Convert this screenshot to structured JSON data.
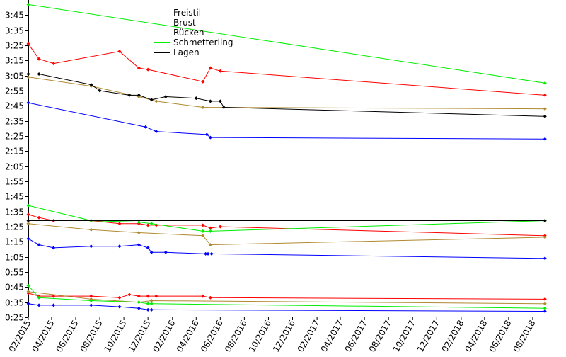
{
  "chart_data": {
    "type": "line",
    "x_type": "date",
    "xlim": [
      "2015-02-01",
      "2018-10-01"
    ],
    "ylim": [
      "0:25",
      "3:55"
    ],
    "x_ticks": [
      "02/2015",
      "04/2015",
      "06/2015",
      "08/2015",
      "10/2015",
      "12/2015",
      "02/2016",
      "04/2016",
      "06/2016",
      "08/2016",
      "10/2016",
      "12/2016",
      "02/2017",
      "04/2017",
      "06/2017",
      "08/2017",
      "10/2017",
      "12/2017",
      "02/2018",
      "04/2018",
      "06/2018",
      "08/2018"
    ],
    "y_ticks": [
      "0:25",
      "0:35",
      "0:45",
      "0:55",
      "1:05",
      "1:15",
      "1:25",
      "1:35",
      "1:45",
      "1:55",
      "2:05",
      "2:15",
      "2:25",
      "2:35",
      "2:45",
      "2:55",
      "3:05",
      "3:15",
      "3:25",
      "3:35",
      "3:45"
    ],
    "grid": false,
    "legend_position": "top-center",
    "series": [
      {
        "name": "Freistil",
        "color": "#0000ff",
        "groups": [
          [
            [
              "2015-02-01",
              "2:47"
            ],
            [
              "2015-11-25",
              "2:31"
            ],
            [
              "2015-12-22",
              "2:28"
            ],
            [
              "2016-04-28",
              "2:26"
            ],
            [
              "2016-05-07",
              "2:24"
            ],
            [
              "2018-09-01",
              "2:23"
            ]
          ],
          [
            [
              "2015-02-01",
              "1:17"
            ],
            [
              "2015-02-28",
              "1:13"
            ],
            [
              "2015-04-06",
              "1:11"
            ],
            [
              "2015-07-10",
              "1:12"
            ],
            [
              "2015-09-20",
              "1:12"
            ],
            [
              "2015-11-08",
              "1:13"
            ],
            [
              "2015-12-01",
              "1:11"
            ],
            [
              "2015-12-10",
              "1:08"
            ],
            [
              "2016-01-15",
              "1:08"
            ],
            [
              "2016-04-25",
              "1:07"
            ],
            [
              "2016-05-01",
              "1:07"
            ],
            [
              "2016-05-10",
              "1:07"
            ],
            [
              "2018-09-01",
              "1:04"
            ]
          ],
          [
            [
              "2015-02-01",
              "0:34"
            ],
            [
              "2015-02-28",
              "0:33"
            ],
            [
              "2015-04-06",
              "0:33"
            ],
            [
              "2015-07-10",
              "0:33"
            ],
            [
              "2015-09-20",
              "0:32"
            ],
            [
              "2015-11-08",
              "0:31"
            ],
            [
              "2015-12-01",
              "0:30"
            ],
            [
              "2015-12-10",
              "0:30"
            ],
            [
              "2018-09-01",
              "0:29"
            ]
          ]
        ]
      },
      {
        "name": "Brust",
        "color": "#ff0000",
        "groups": [
          [
            [
              "2015-02-01",
              "3:26"
            ],
            [
              "2015-02-28",
              "3:16"
            ],
            [
              "2015-04-06",
              "3:13"
            ],
            [
              "2015-09-20",
              "3:21"
            ],
            [
              "2015-11-08",
              "3:10"
            ],
            [
              "2015-12-01",
              "3:09"
            ],
            [
              "2016-04-18",
              "3:01"
            ],
            [
              "2016-05-07",
              "3:10"
            ],
            [
              "2016-06-01",
              "3:08"
            ],
            [
              "2018-09-01",
              "2:52"
            ]
          ],
          [
            [
              "2015-02-01",
              "1:33"
            ],
            [
              "2015-02-28",
              "1:31"
            ],
            [
              "2015-04-06",
              "1:29"
            ],
            [
              "2015-07-10",
              "1:29"
            ],
            [
              "2015-09-20",
              "1:27"
            ],
            [
              "2015-11-08",
              "1:27"
            ],
            [
              "2015-12-01",
              "1:26"
            ],
            [
              "2015-12-22",
              "1:26"
            ],
            [
              "2016-04-18",
              "1:26"
            ],
            [
              "2016-05-07",
              "1:24"
            ],
            [
              "2016-06-01",
              "1:25"
            ],
            [
              "2018-09-01",
              "1:19"
            ]
          ],
          [
            [
              "2015-02-01",
              "0:41"
            ],
            [
              "2015-02-28",
              "0:39"
            ],
            [
              "2015-04-06",
              "0:39"
            ],
            [
              "2015-07-10",
              "0:39"
            ],
            [
              "2015-09-20",
              "0:38"
            ],
            [
              "2015-10-15",
              "0:40"
            ],
            [
              "2015-11-08",
              "0:39"
            ],
            [
              "2015-12-01",
              "0:39"
            ],
            [
              "2015-12-22",
              "0:39"
            ],
            [
              "2016-04-18",
              "0:39"
            ],
            [
              "2016-05-07",
              "0:38"
            ],
            [
              "2018-09-01",
              "0:37"
            ]
          ]
        ]
      },
      {
        "name": "Rücken",
        "color": "#b08a30",
        "groups": [
          [
            [
              "2015-02-01",
              "3:04"
            ],
            [
              "2015-07-10",
              "2:58"
            ],
            [
              "2015-11-08",
              "2:51"
            ],
            [
              "2015-12-22",
              "2:48"
            ],
            [
              "2016-04-18",
              "2:44"
            ],
            [
              "2018-09-01",
              "2:43"
            ]
          ],
          [
            [
              "2015-02-01",
              "1:27"
            ],
            [
              "2015-07-10",
              "1:23"
            ],
            [
              "2015-11-08",
              "1:21"
            ],
            [
              "2016-04-18",
              "1:19"
            ],
            [
              "2016-05-07",
              "1:13"
            ],
            [
              "2018-09-01",
              "1:18"
            ]
          ],
          [
            [
              "2015-02-01",
              "0:42"
            ],
            [
              "2015-07-10",
              "0:37"
            ],
            [
              "2015-11-08",
              "0:35"
            ],
            [
              "2015-12-10",
              "0:36"
            ],
            [
              "2018-09-01",
              "0:34"
            ]
          ]
        ]
      },
      {
        "name": "Schmetterling",
        "color": "#00ee00",
        "groups": [
          [
            [
              "2015-02-01",
              "3:52"
            ],
            [
              "2018-09-01",
              "3:00"
            ]
          ],
          [
            [
              "2015-02-01",
              "1:39"
            ],
            [
              "2015-07-10",
              "1:29"
            ],
            [
              "2015-11-08",
              "1:28"
            ],
            [
              "2015-12-10",
              "1:27"
            ],
            [
              "2016-04-18",
              "1:22"
            ],
            [
              "2016-05-07",
              "1:22"
            ],
            [
              "2018-09-01",
              "1:29"
            ]
          ],
          [
            [
              "2015-02-01",
              "0:46"
            ],
            [
              "2015-02-28",
              "0:38"
            ],
            [
              "2015-07-10",
              "0:36"
            ],
            [
              "2015-11-08",
              "0:35"
            ],
            [
              "2015-12-01",
              "0:34"
            ],
            [
              "2015-12-10",
              "0:34"
            ],
            [
              "2018-09-01",
              "0:31"
            ]
          ]
        ]
      },
      {
        "name": "Lagen",
        "color": "#000000",
        "groups": [
          [
            [
              "2015-02-01",
              "3:06"
            ],
            [
              "2015-02-28",
              "3:06"
            ],
            [
              "2015-07-10",
              "2:59"
            ],
            [
              "2015-08-01",
              "2:55"
            ],
            [
              "2015-10-15",
              "2:52"
            ],
            [
              "2015-11-08",
              "2:52"
            ],
            [
              "2015-12-10",
              "2:49"
            ],
            [
              "2016-01-15",
              "2:51"
            ],
            [
              "2016-04-01",
              "2:50"
            ],
            [
              "2016-05-07",
              "2:48"
            ],
            [
              "2016-06-01",
              "2:48"
            ],
            [
              "2016-06-10",
              "2:44"
            ],
            [
              "2018-09-01",
              "2:38"
            ]
          ],
          [
            [
              "2015-02-01",
              "1:29"
            ],
            [
              "2018-09-01",
              "1:29"
            ]
          ]
        ]
      }
    ]
  }
}
